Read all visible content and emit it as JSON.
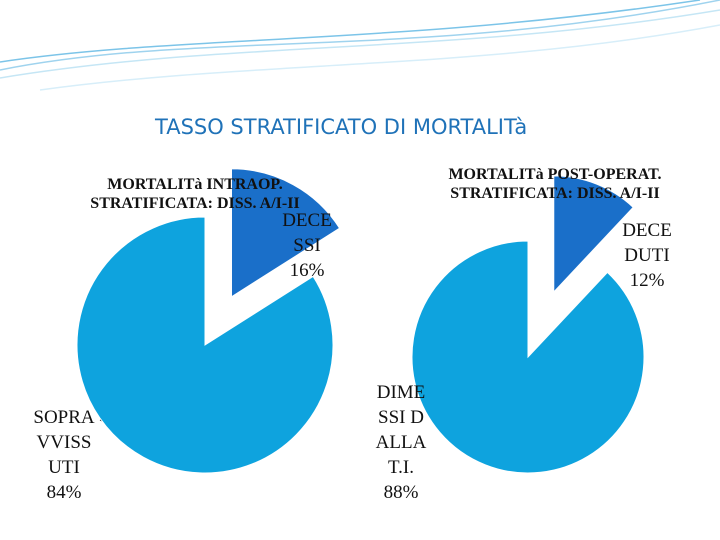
{
  "slide": {
    "title": "TASSO STRATIFICATO DI MORTALITà"
  },
  "chart_data": [
    {
      "type": "pie",
      "title": "MORTALITà INTRAOP. STRATIFICATA: DISS. A/I-II",
      "categories": [
        "DECESSI",
        "SOPRAVVISSUTI"
      ],
      "values": [
        16,
        84
      ],
      "value_labels": [
        "16%",
        "84%"
      ],
      "colors": [
        "#1a6fc9",
        "#0ea3de"
      ]
    },
    {
      "type": "pie",
      "title": "MORTALITà POST-OPERAT. STRATIFICATA: DISS. A/I-II",
      "categories": [
        "DECEDUTI",
        "DIMESSI DALLA T.I."
      ],
      "values": [
        12,
        88
      ],
      "value_labels": [
        "12%",
        "88%"
      ],
      "colors": [
        "#1a6fc9",
        "#0ea3de"
      ]
    }
  ]
}
